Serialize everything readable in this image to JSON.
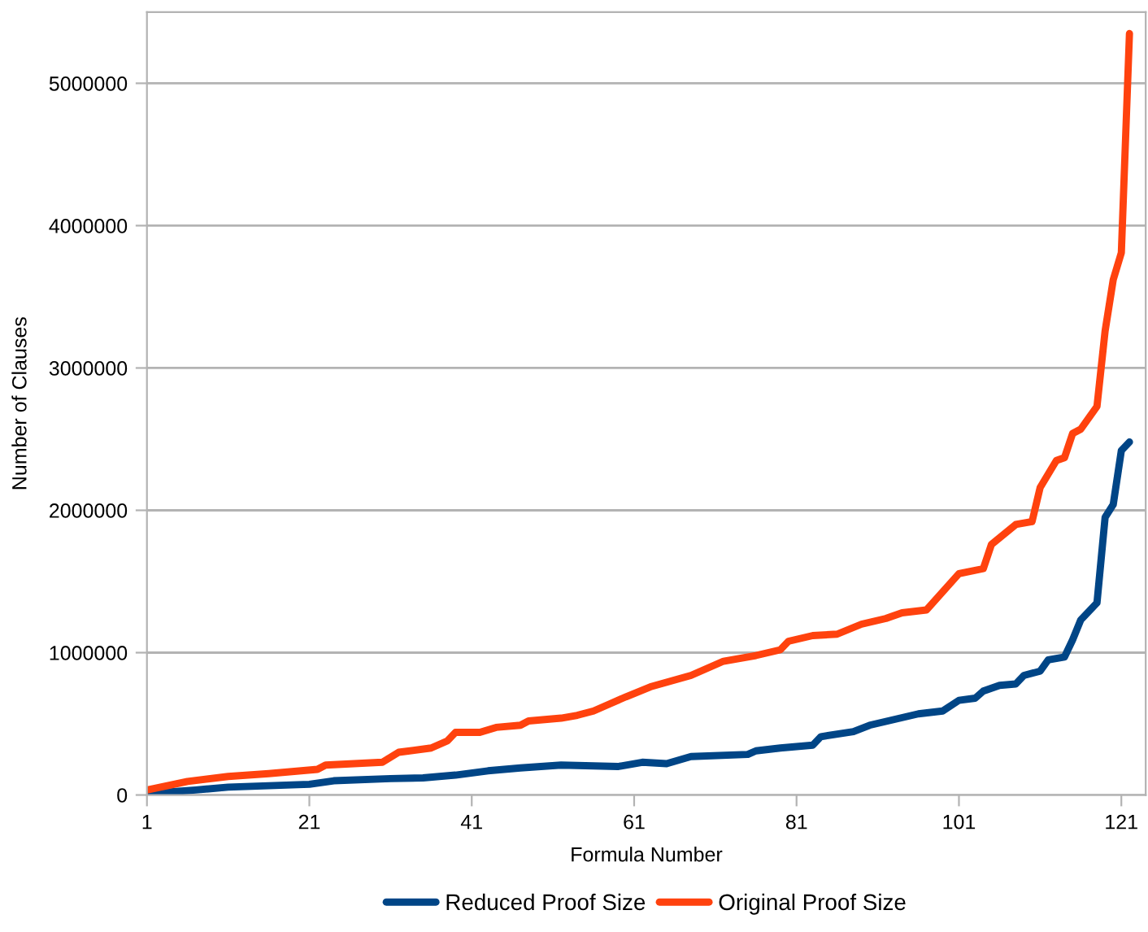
{
  "chart_data": {
    "type": "line",
    "xlabel": "Formula Number",
    "ylabel": "Number of Clauses",
    "xlim": [
      1,
      124
    ],
    "xticks": [
      1,
      21,
      41,
      61,
      81,
      101,
      121
    ],
    "ylim": [
      0,
      5500000
    ],
    "yticks": [
      0,
      1000000,
      2000000,
      3000000,
      4000000,
      5000000
    ],
    "grid": "y",
    "legend": "bottom",
    "marker": "none",
    "line_style": "solid",
    "series": [
      {
        "name": "Reduced Proof Size",
        "color": "#004586",
        "x": [
          1,
          7,
          11,
          21,
          24,
          31,
          35,
          39,
          43,
          47,
          52,
          59,
          62,
          65,
          68,
          75,
          76,
          79,
          83,
          84,
          88,
          90,
          96,
          99,
          101,
          103,
          104,
          106,
          108,
          109,
          111,
          112,
          114,
          115,
          116,
          118,
          119,
          120,
          121,
          122
        ],
        "values": [
          10000,
          35000,
          55000,
          75000,
          100000,
          115000,
          120000,
          140000,
          170000,
          190000,
          210000,
          200000,
          230000,
          220000,
          270000,
          285000,
          310000,
          330000,
          350000,
          410000,
          445000,
          490000,
          570000,
          590000,
          665000,
          680000,
          730000,
          770000,
          780000,
          840000,
          870000,
          950000,
          970000,
          1090000,
          1230000,
          1350000,
          1950000,
          2040000,
          2420000,
          2480000
        ]
      },
      {
        "name": "Original Proof Size",
        "color": "#ff420e",
        "x": [
          1,
          6,
          11,
          16,
          22,
          23,
          30,
          32,
          36,
          38,
          39,
          42,
          44,
          47,
          48,
          52,
          54,
          56,
          58,
          60,
          63,
          68,
          72,
          76,
          79,
          80,
          83,
          86,
          89,
          92,
          94,
          97,
          101,
          104,
          105,
          108,
          110,
          111,
          113,
          114,
          115,
          116,
          118,
          119,
          120,
          121,
          122
        ],
        "values": [
          35000,
          95000,
          130000,
          150000,
          180000,
          210000,
          230000,
          300000,
          330000,
          380000,
          440000,
          440000,
          475000,
          490000,
          520000,
          540000,
          560000,
          590000,
          640000,
          690000,
          760000,
          840000,
          940000,
          980000,
          1020000,
          1080000,
          1120000,
          1130000,
          1200000,
          1240000,
          1280000,
          1300000,
          1555000,
          1590000,
          1760000,
          1900000,
          1920000,
          2160000,
          2350000,
          2370000,
          2540000,
          2570000,
          2730000,
          3260000,
          3620000,
          3810000,
          5350000
        ]
      }
    ]
  }
}
